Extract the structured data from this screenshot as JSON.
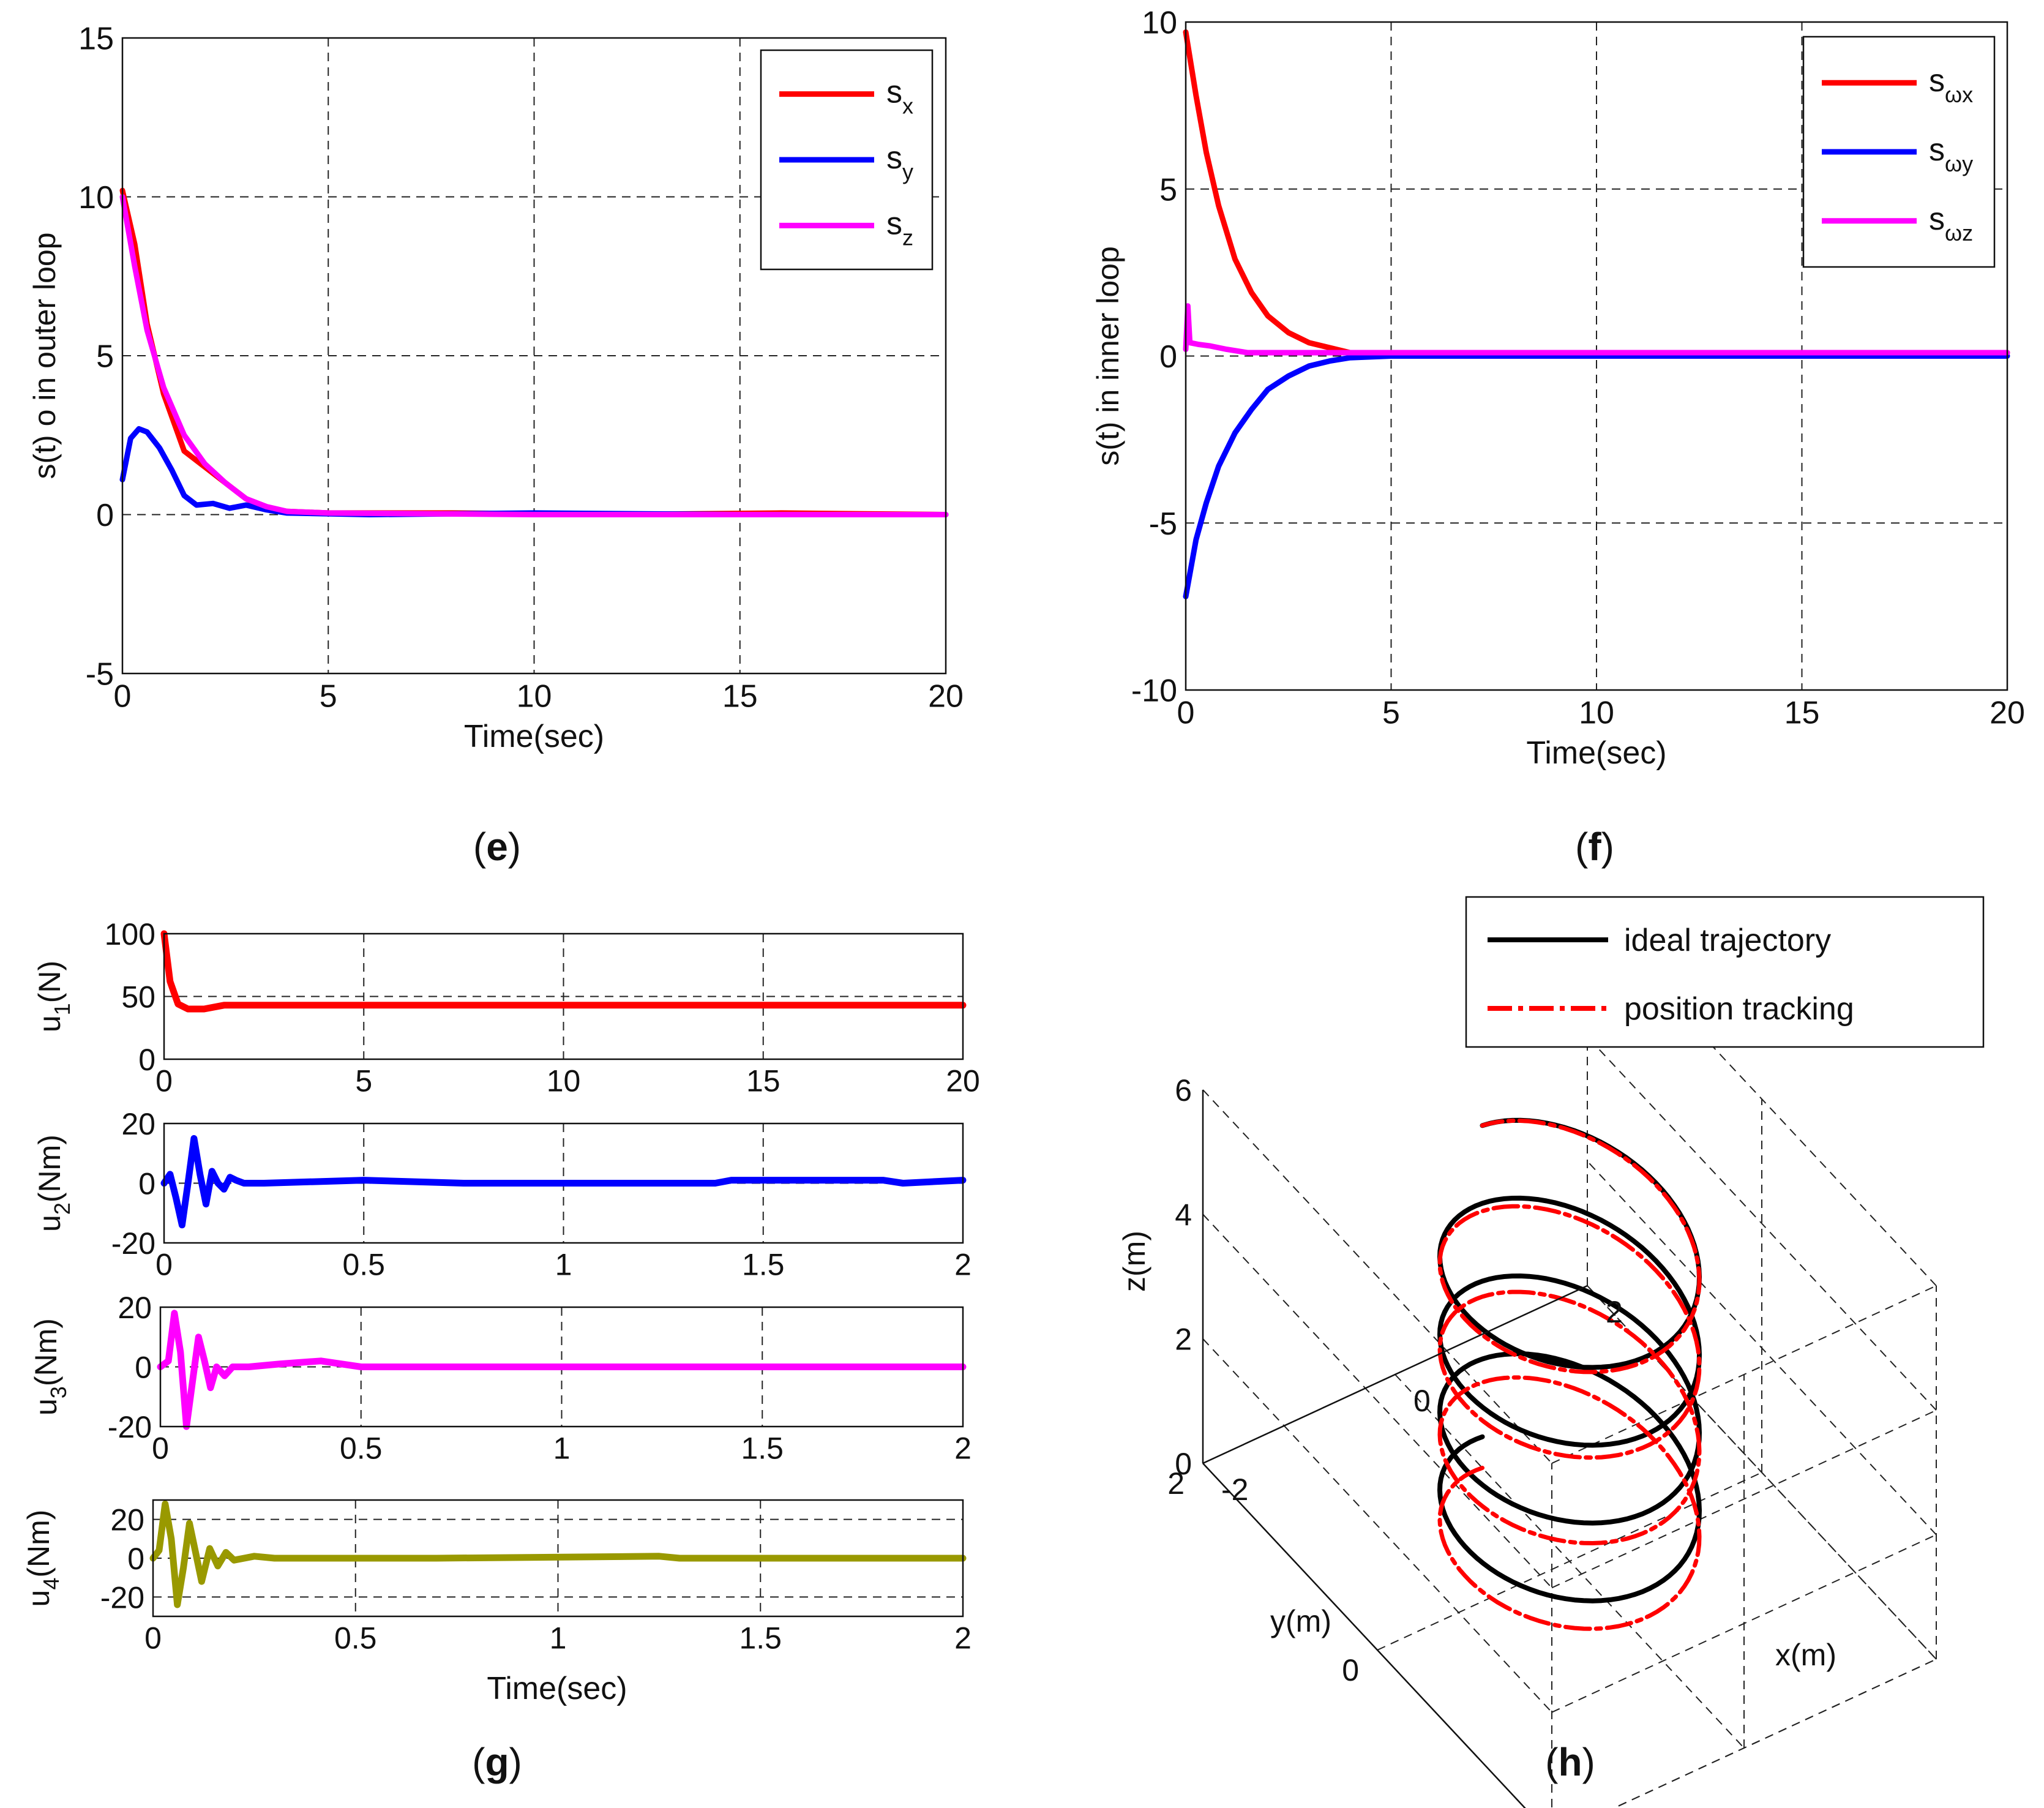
{
  "captions": {
    "e": {
      "open": "(",
      "letter": "e",
      "close": ")"
    },
    "f": {
      "open": "(",
      "letter": "f",
      "close": ")"
    },
    "g": {
      "open": "(",
      "letter": "g",
      "close": ")"
    },
    "h": {
      "open": "(",
      "letter": "h",
      "close": ")"
    }
  },
  "chart_data": [
    {
      "id": "e",
      "type": "line",
      "title": "",
      "xlabel": "Time(sec)",
      "ylabel": "s(t) o in outer loop",
      "xlim": [
        0,
        20
      ],
      "ylim": [
        -5,
        15
      ],
      "xticks": [
        0,
        5,
        10,
        15,
        20
      ],
      "yticks": [
        -5,
        0,
        5,
        10,
        15
      ],
      "grid": true,
      "legend_position": "top-right",
      "series": [
        {
          "name": "s",
          "sub": "x",
          "color": "#ff0000",
          "x": [
            0,
            0.3,
            0.6,
            1.0,
            1.5,
            2.0,
            2.5,
            3.0,
            3.5,
            4.0,
            5.0,
            8.0,
            12.0,
            16.0,
            20.0
          ],
          "y": [
            10.2,
            8.5,
            6.0,
            3.8,
            2.0,
            1.5,
            1.0,
            0.5,
            0.2,
            0.1,
            0.05,
            0.05,
            0.0,
            0.05,
            0.0
          ]
        },
        {
          "name": "s",
          "sub": "y",
          "color": "#0000ff",
          "x": [
            0,
            0.2,
            0.4,
            0.6,
            0.9,
            1.2,
            1.5,
            1.8,
            2.2,
            2.6,
            3.0,
            3.5,
            4.0,
            6.0,
            10.0,
            15.0,
            20.0
          ],
          "y": [
            1.1,
            2.4,
            2.7,
            2.6,
            2.1,
            1.4,
            0.6,
            0.3,
            0.35,
            0.2,
            0.3,
            0.15,
            0.05,
            0.0,
            0.05,
            0.0,
            0.0
          ]
        },
        {
          "name": "s",
          "sub": "z",
          "color": "#ff00ff",
          "x": [
            0,
            0.3,
            0.6,
            1.0,
            1.5,
            2.0,
            2.5,
            3.0,
            3.5,
            4.0,
            5.0,
            10.0,
            20.0
          ],
          "y": [
            10.0,
            7.8,
            5.8,
            4.0,
            2.5,
            1.6,
            1.0,
            0.5,
            0.25,
            0.1,
            0.05,
            0.0,
            0.0
          ]
        }
      ]
    },
    {
      "id": "f",
      "type": "line",
      "title": "",
      "xlabel": "Time(sec)",
      "ylabel": "s(t) in inner loop",
      "xlim": [
        0,
        20
      ],
      "ylim": [
        -10,
        10
      ],
      "xticks": [
        0,
        5,
        10,
        15,
        20
      ],
      "yticks": [
        -10,
        -5,
        0,
        5,
        10
      ],
      "grid": true,
      "legend_position": "top-right",
      "series": [
        {
          "name": "s",
          "sub": "ωx",
          "color": "#ff0000",
          "x": [
            0,
            0.25,
            0.5,
            0.8,
            1.2,
            1.6,
            2.0,
            2.5,
            3.0,
            3.5,
            4.0,
            5.0,
            20.0
          ],
          "y": [
            9.7,
            7.8,
            6.1,
            4.5,
            2.9,
            1.9,
            1.2,
            0.7,
            0.4,
            0.25,
            0.1,
            0.1,
            0.1
          ]
        },
        {
          "name": "s",
          "sub": "ωy",
          "color": "#0000ff",
          "x": [
            0,
            0.25,
            0.5,
            0.8,
            1.2,
            1.6,
            2.0,
            2.5,
            3.0,
            3.5,
            4.0,
            5.0,
            20.0
          ],
          "y": [
            -7.2,
            -5.5,
            -4.4,
            -3.3,
            -2.3,
            -1.6,
            -1.0,
            -0.6,
            -0.3,
            -0.15,
            -0.05,
            0.0,
            0.0
          ]
        },
        {
          "name": "s",
          "sub": "ωz",
          "color": "#ff00ff",
          "x": [
            0,
            0.05,
            0.1,
            0.3,
            0.6,
            1.0,
            1.5,
            2.0,
            20.0
          ],
          "y": [
            0.2,
            1.5,
            0.4,
            0.35,
            0.3,
            0.2,
            0.1,
            0.1,
            0.1
          ]
        }
      ]
    },
    {
      "id": "g",
      "type": "line",
      "xlabel": "Time(sec)",
      "subplots": [
        {
          "ylabel": "u",
          "sub": "1",
          "unit": "(N)",
          "xlim": [
            0,
            20
          ],
          "ylim": [
            0,
            100
          ],
          "xticks": [
            0,
            5,
            10,
            15,
            20
          ],
          "yticks": [
            0,
            50,
            100
          ],
          "color": "#ff0000",
          "x": [
            0,
            0.15,
            0.35,
            0.6,
            1.0,
            1.5,
            2.0,
            20.0
          ],
          "y": [
            100,
            62,
            44,
            40,
            40,
            43,
            43,
            43
          ]
        },
        {
          "ylabel": "u",
          "sub": "2",
          "unit": "(Nm)",
          "xlim": [
            0,
            2
          ],
          "ylim": [
            -20,
            20
          ],
          "xticks": [
            0,
            0.5,
            1,
            1.5,
            2
          ],
          "yticks": [
            -20,
            0,
            20
          ],
          "color": "#0000ff",
          "x": [
            0,
            0.015,
            0.03,
            0.045,
            0.06,
            0.075,
            0.09,
            0.105,
            0.12,
            0.135,
            0.15,
            0.165,
            0.18,
            0.2,
            0.25,
            0.5,
            0.75,
            1.0,
            1.38,
            1.42,
            1.8,
            1.85,
            2.0
          ],
          "y": [
            0,
            3,
            -5,
            -14,
            0,
            15,
            3,
            -7,
            4,
            0,
            -2,
            2,
            1,
            0,
            0,
            1,
            0,
            0,
            0,
            1,
            1,
            0,
            1
          ]
        },
        {
          "ylabel": "u",
          "sub": "3",
          "unit": "(Nm)",
          "xlim": [
            0,
            2
          ],
          "ylim": [
            -20,
            20
          ],
          "xticks": [
            0,
            0.5,
            1,
            1.5,
            2
          ],
          "yticks": [
            -20,
            0,
            20
          ],
          "color": "#ff00ff",
          "x": [
            0,
            0.02,
            0.035,
            0.05,
            0.065,
            0.08,
            0.095,
            0.11,
            0.125,
            0.14,
            0.16,
            0.18,
            0.22,
            0.3,
            0.4,
            0.5,
            2.0
          ],
          "y": [
            0,
            2,
            18,
            5,
            -20,
            -5,
            10,
            2,
            -7,
            0,
            -3,
            0,
            0,
            1,
            2,
            0,
            0
          ]
        },
        {
          "ylabel": "u",
          "sub": "4",
          "unit": "(Nm)",
          "xlim": [
            0,
            2
          ],
          "ylim": [
            -30,
            30
          ],
          "xticks": [
            0,
            0.5,
            1,
            1.5,
            2
          ],
          "xticklabels": [
            "0",
            "0.5",
            "1",
            "1.5",
            "2"
          ],
          "yticks": [
            -20,
            0,
            20
          ],
          "color": "#999900",
          "x": [
            0,
            0.015,
            0.03,
            0.045,
            0.06,
            0.075,
            0.09,
            0.105,
            0.12,
            0.14,
            0.16,
            0.18,
            0.2,
            0.25,
            0.3,
            0.7,
            1.25,
            1.3,
            2.0
          ],
          "y": [
            0,
            4,
            28,
            10,
            -24,
            -5,
            18,
            3,
            -12,
            5,
            -4,
            3,
            -1,
            1,
            0,
            0,
            1,
            0,
            0
          ]
        }
      ]
    },
    {
      "id": "h",
      "type": "line",
      "title": "",
      "xlabel": "x(m)",
      "ylabel": "y(m)",
      "zlabel": "z(m)",
      "xlim": [
        -2,
        2
      ],
      "ylim": [
        -2,
        2
      ],
      "zlim": [
        0,
        6
      ],
      "xticks": [
        -2,
        0,
        2
      ],
      "yticks": [
        -2,
        0,
        2
      ],
      "zticks": [
        0,
        2,
        4,
        6
      ],
      "grid": true,
      "legend_position": "top",
      "series": [
        {
          "name": "ideal trajectory",
          "color": "#000000",
          "style": "solid",
          "curve": "helix",
          "radius": 1.0,
          "z_start": 0.5,
          "z_end": 5.5,
          "turns": 4
        },
        {
          "name": "position tracking",
          "color": "#ff0000",
          "style": "dashdot",
          "curve": "helix",
          "radius": 1.0,
          "z_start": 0.0,
          "z_end": 5.5,
          "turns": 4
        }
      ]
    }
  ]
}
